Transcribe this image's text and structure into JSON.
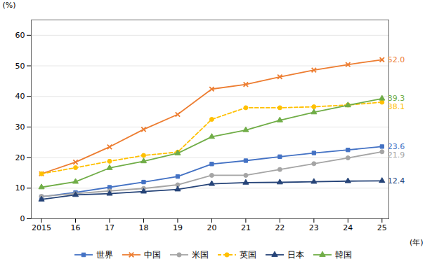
{
  "chart_data": {
    "type": "line",
    "x": [
      2015,
      2016,
      2017,
      2018,
      2019,
      2020,
      2021,
      2022,
      2023,
      2024,
      2025
    ],
    "series": [
      {
        "name": "世界",
        "color": "#4472C4",
        "marker": "square",
        "line_style": "solid",
        "values": [
          7.2,
          8.6,
          10.3,
          12.0,
          13.8,
          17.9,
          19.0,
          20.3,
          21.5,
          22.5,
          23.6
        ]
      },
      {
        "name": "中国",
        "color": "#ED7D31",
        "marker": "x",
        "line_style": "solid",
        "values": [
          14.7,
          18.5,
          23.5,
          29.2,
          34.1,
          42.4,
          43.9,
          46.4,
          48.6,
          50.4,
          52.0
        ]
      },
      {
        "name": "米国",
        "color": "#A5A5A5",
        "marker": "circle",
        "line_style": "solid",
        "values": [
          7.3,
          8.2,
          9.1,
          9.9,
          11.1,
          14.2,
          14.2,
          16.1,
          18.0,
          19.9,
          21.9
        ]
      },
      {
        "name": "英国",
        "color": "#FFC000",
        "marker": "circle",
        "line_style": "dashed",
        "values": [
          14.7,
          16.7,
          18.8,
          20.7,
          21.8,
          32.5,
          36.3,
          36.3,
          36.6,
          37.2,
          38.1
        ]
      },
      {
        "name": "日本",
        "color": "#264478",
        "marker": "triangle",
        "line_style": "solid",
        "values": [
          6.3,
          7.8,
          8.2,
          8.9,
          9.6,
          11.4,
          11.8,
          11.9,
          12.1,
          12.3,
          12.4
        ]
      },
      {
        "name": "韓国",
        "color": "#70AD47",
        "marker": "triangle",
        "line_style": "solid",
        "values": [
          10.3,
          12.1,
          16.6,
          18.8,
          21.4,
          26.8,
          29.0,
          32.2,
          34.8,
          37.1,
          39.3
        ]
      }
    ],
    "xlabel": "(年)",
    "ylabel": "(%)",
    "xlim": [
      2014.7,
      2025.2
    ],
    "xticks": [
      2015,
      {
        "value": 2016,
        "label": "16"
      },
      {
        "value": 2017,
        "label": "17"
      },
      {
        "value": 2018,
        "label": "18"
      },
      {
        "value": 2019,
        "label": "19"
      },
      {
        "value": 2020,
        "label": "20"
      },
      {
        "value": 2021,
        "label": "21"
      },
      {
        "value": 2022,
        "label": "22"
      },
      {
        "value": 2023,
        "label": "23"
      },
      {
        "value": 2024,
        "label": "24"
      },
      {
        "value": 2025,
        "label": "25"
      }
    ],
    "ylim": [
      0,
      65
    ],
    "yticks": [
      0,
      10,
      20,
      30,
      40,
      50,
      60
    ],
    "grid": "y",
    "legend": "bottom",
    "annotations": [
      {
        "text": "52.0",
        "x": 2025,
        "y": 52.0,
        "color": "#ED7D31"
      },
      {
        "text": "39.3",
        "x": 2025,
        "y": 39.3,
        "color": "#70AD47"
      },
      {
        "text": "38.1",
        "x": 2025,
        "y": 38.1,
        "color": "#FFC000"
      },
      {
        "text": "23.6",
        "x": 2025,
        "y": 23.6,
        "color": "#4472C4"
      },
      {
        "text": "21.9",
        "x": 2025,
        "y": 21.9,
        "color": "#A5A5A5"
      },
      {
        "text": "12.4",
        "x": 2025,
        "y": 12.4,
        "color": "#264478"
      }
    ]
  }
}
